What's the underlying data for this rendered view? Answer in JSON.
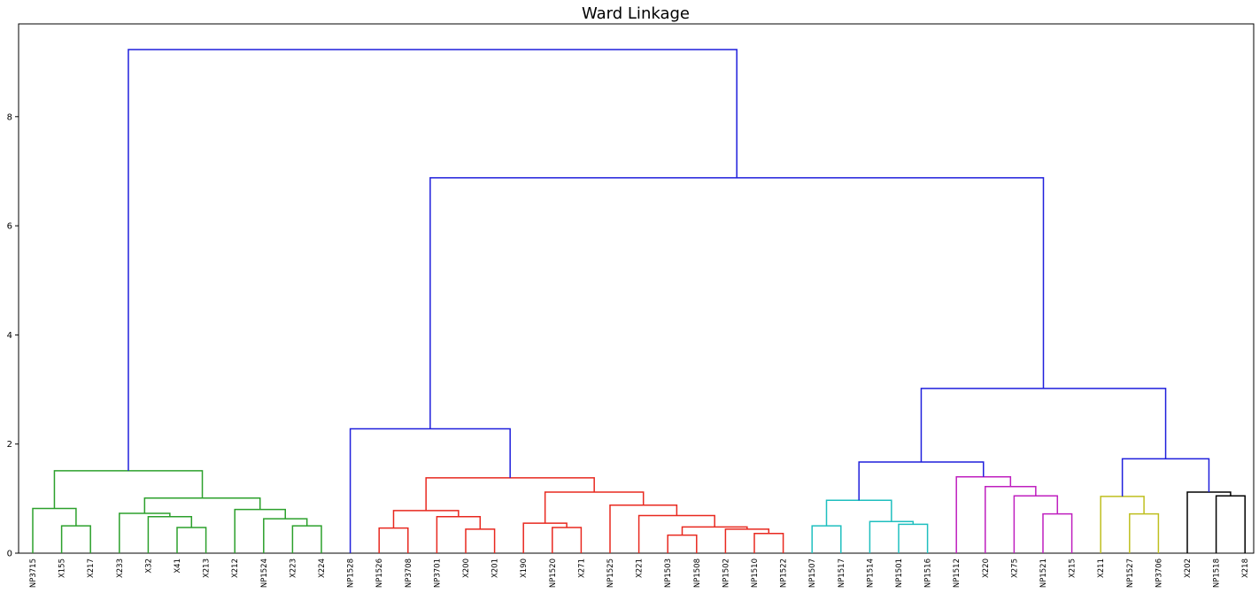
{
  "chart_data": {
    "type": "dendrogram",
    "title": "Ward Linkage",
    "xlabel": "",
    "ylabel": "",
    "ylim": [
      0,
      9.7
    ],
    "yticks": [
      0,
      2,
      4,
      6,
      8
    ],
    "grid": false,
    "colors": {
      "green": "#2ca02c",
      "red": "#e8281f",
      "cyan": "#1fbfbf",
      "magenta": "#bf1fbf",
      "yellow": "#bfbf1f",
      "black": "#000000",
      "blue": "#1f1fdc"
    },
    "leaves": [
      "NP3715",
      "X155",
      "X217",
      "X233",
      "X32",
      "X41",
      "X213",
      "X212",
      "NP1524",
      "X223",
      "X224",
      "NP1528",
      "NP1526",
      "NP3708",
      "NP3701",
      "X200",
      "X201",
      "X190",
      "NP1520",
      "X271",
      "NP1525",
      "X221",
      "NP1503",
      "NP1508",
      "NP1502",
      "NP1510",
      "NP1522",
      "NP1507",
      "NP1517",
      "NP1514",
      "NP1501",
      "NP1516",
      "NP1512",
      "X220",
      "X275",
      "NP1521",
      "X215",
      "X211",
      "NP1527",
      "NP3706",
      "X202",
      "NP1518",
      "X218"
    ],
    "merges": [
      {
        "id": "g1",
        "left": "X155",
        "right": "X217",
        "height": 0.5,
        "color": "green"
      },
      {
        "id": "g2",
        "left": "NP3715",
        "right": "g1",
        "height": 0.82,
        "color": "green"
      },
      {
        "id": "g3",
        "left": "X41",
        "right": "X213",
        "height": 0.47,
        "color": "green"
      },
      {
        "id": "g4",
        "left": "X32",
        "right": "g3",
        "height": 0.67,
        "color": "green"
      },
      {
        "id": "g5",
        "left": "X233",
        "right": "g4",
        "height": 0.73,
        "color": "green"
      },
      {
        "id": "g6",
        "left": "X223",
        "right": "X224",
        "height": 0.5,
        "color": "green"
      },
      {
        "id": "g7",
        "left": "NP1524",
        "right": "g6",
        "height": 0.63,
        "color": "green"
      },
      {
        "id": "g8",
        "left": "X212",
        "right": "g7",
        "height": 0.8,
        "color": "green"
      },
      {
        "id": "g9",
        "left": "g5",
        "right": "g8",
        "height": 1.01,
        "color": "green"
      },
      {
        "id": "g10",
        "left": "g2",
        "right": "g9",
        "height": 1.51,
        "color": "green"
      },
      {
        "id": "r1",
        "left": "NP1526",
        "right": "NP3708",
        "height": 0.46,
        "color": "red"
      },
      {
        "id": "r2",
        "left": "X200",
        "right": "X201",
        "height": 0.44,
        "color": "red"
      },
      {
        "id": "r3",
        "left": "NP3701",
        "right": "r2",
        "height": 0.67,
        "color": "red"
      },
      {
        "id": "r4",
        "left": "r1",
        "right": "r3",
        "height": 0.78,
        "color": "red"
      },
      {
        "id": "r5",
        "left": "NP1520",
        "right": "X271",
        "height": 0.47,
        "color": "red"
      },
      {
        "id": "r6",
        "left": "X190",
        "right": "r5",
        "height": 0.55,
        "color": "red"
      },
      {
        "id": "r7",
        "left": "NP1503",
        "right": "NP1508",
        "height": 0.33,
        "color": "red"
      },
      {
        "id": "r8",
        "left": "NP1510",
        "right": "NP1522",
        "height": 0.36,
        "color": "red"
      },
      {
        "id": "r9",
        "left": "NP1502",
        "right": "r8",
        "height": 0.44,
        "color": "red"
      },
      {
        "id": "r10",
        "left": "r7",
        "right": "r9",
        "height": 0.48,
        "color": "red"
      },
      {
        "id": "r11",
        "left": "X221",
        "right": "r10",
        "height": 0.69,
        "color": "red"
      },
      {
        "id": "r12",
        "left": "NP1525",
        "right": "r11",
        "height": 0.88,
        "color": "red"
      },
      {
        "id": "r13",
        "left": "r6",
        "right": "r12",
        "height": 1.12,
        "color": "red"
      },
      {
        "id": "r14",
        "left": "r4",
        "right": "r13",
        "height": 1.38,
        "color": "red"
      },
      {
        "id": "c1",
        "left": "NP1507",
        "right": "NP1517",
        "height": 0.5,
        "color": "cyan"
      },
      {
        "id": "c2",
        "left": "NP1501",
        "right": "NP1516",
        "height": 0.53,
        "color": "cyan"
      },
      {
        "id": "c3",
        "left": "NP1514",
        "right": "c2",
        "height": 0.58,
        "color": "cyan"
      },
      {
        "id": "c4",
        "left": "c1",
        "right": "c3",
        "height": 0.97,
        "color": "cyan"
      },
      {
        "id": "m1",
        "left": "NP1521",
        "right": "X215",
        "height": 0.72,
        "color": "magenta"
      },
      {
        "id": "m2",
        "left": "X275",
        "right": "m1",
        "height": 1.05,
        "color": "magenta"
      },
      {
        "id": "m3",
        "left": "X220",
        "right": "m2",
        "height": 1.22,
        "color": "magenta"
      },
      {
        "id": "m4",
        "left": "NP1512",
        "right": "m3",
        "height": 1.4,
        "color": "magenta"
      },
      {
        "id": "y1",
        "left": "NP1527",
        "right": "NP3706",
        "height": 0.72,
        "color": "yellow"
      },
      {
        "id": "y2",
        "left": "X211",
        "right": "y1",
        "height": 1.04,
        "color": "yellow"
      },
      {
        "id": "k1",
        "left": "NP1518",
        "right": "X218",
        "height": 1.05,
        "color": "black"
      },
      {
        "id": "k2",
        "left": "X202",
        "right": "k1",
        "height": 1.12,
        "color": "black"
      },
      {
        "id": "b1",
        "left": "NP1528",
        "right": "r14",
        "height": 2.28,
        "color": "blue"
      },
      {
        "id": "b2",
        "left": "c4",
        "right": "m4",
        "height": 1.67,
        "color": "blue"
      },
      {
        "id": "b3",
        "left": "y2",
        "right": "k2",
        "height": 1.73,
        "color": "blue"
      },
      {
        "id": "b4",
        "left": "b2",
        "right": "b3",
        "height": 3.02,
        "color": "blue"
      },
      {
        "id": "b5",
        "left": "b1",
        "right": "b4",
        "height": 6.88,
        "color": "blue"
      },
      {
        "id": "b6",
        "left": "g10",
        "right": "b5",
        "height": 9.23,
        "color": "blue"
      }
    ]
  }
}
